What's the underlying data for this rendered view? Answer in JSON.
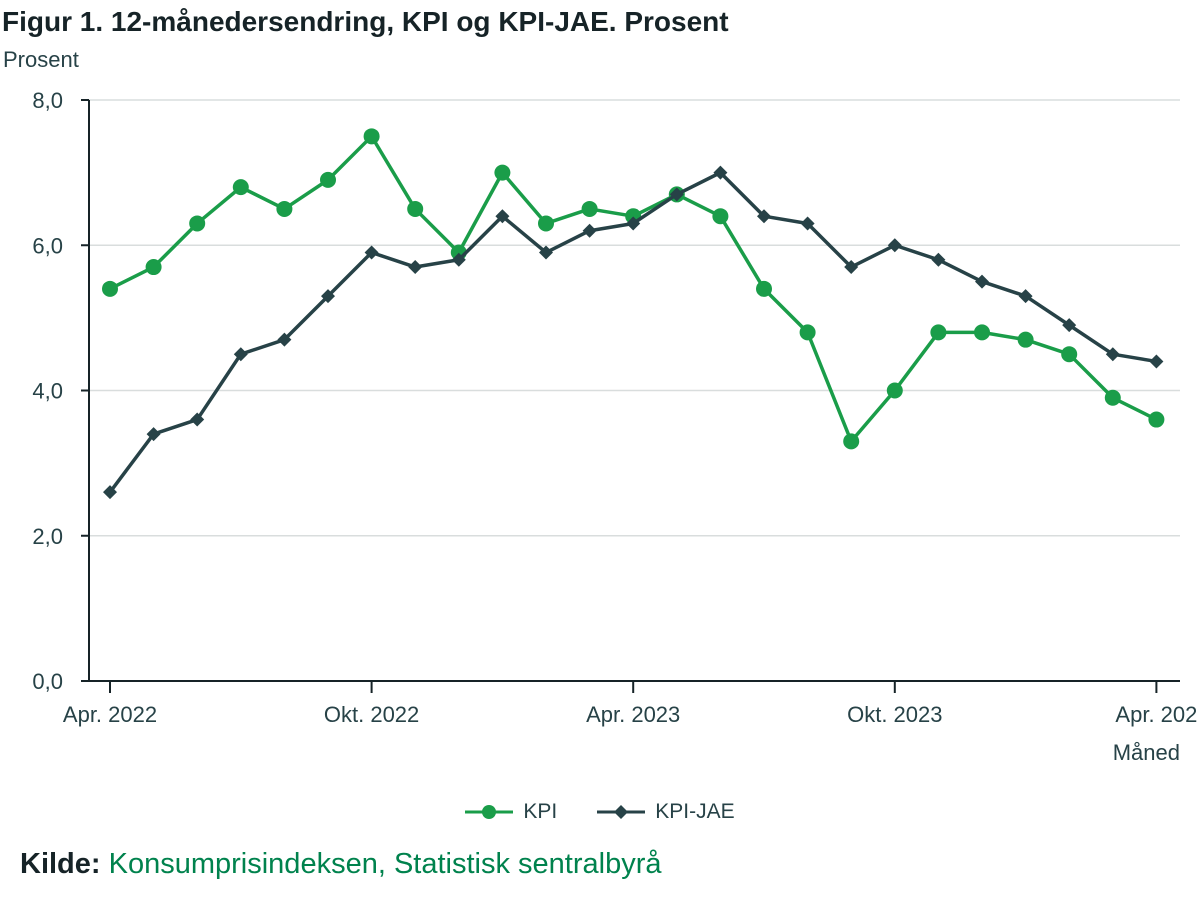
{
  "chart_data": {
    "type": "line",
    "title": "Figur 1. 12-månedersendring, KPI og KPI-JAE. Prosent",
    "ylabel": "Prosent",
    "xlabel": "Måned",
    "ylim": [
      0,
      8
    ],
    "yticks": [
      "0,0",
      "2,0",
      "4,0",
      "6,0",
      "8,0"
    ],
    "ytick_values": [
      0,
      2,
      4,
      6,
      8
    ],
    "x": [
      "2022-04",
      "2022-05",
      "2022-06",
      "2022-07",
      "2022-08",
      "2022-09",
      "2022-10",
      "2022-11",
      "2022-12",
      "2023-01",
      "2023-02",
      "2023-03",
      "2023-04",
      "2023-05",
      "2023-06",
      "2023-07",
      "2023-08",
      "2023-09",
      "2023-10",
      "2023-11",
      "2023-12",
      "2024-01",
      "2024-02",
      "2024-03",
      "2024-04"
    ],
    "xticks": [
      {
        "x": "2022-04",
        "label": "Apr. 2022"
      },
      {
        "x": "2022-10",
        "label": "Okt. 2022"
      },
      {
        "x": "2023-04",
        "label": "Apr. 2023"
      },
      {
        "x": "2023-10",
        "label": "Okt. 2023"
      },
      {
        "x": "2024-04",
        "label": "Apr. 202"
      }
    ],
    "grid": true,
    "legend_position": "bottom-center",
    "series": [
      {
        "name": "KPI",
        "color": "#1a9d49",
        "marker": "circle",
        "values": [
          5.4,
          5.7,
          6.3,
          6.8,
          6.5,
          6.9,
          7.5,
          6.5,
          5.9,
          7.0,
          6.3,
          6.5,
          6.4,
          6.7,
          6.4,
          5.4,
          4.8,
          3.3,
          4.0,
          4.8,
          4.8,
          4.7,
          4.5,
          3.9,
          3.6
        ]
      },
      {
        "name": "KPI-JAE",
        "color": "#274247",
        "marker": "diamond",
        "values": [
          2.6,
          3.4,
          3.6,
          4.5,
          4.7,
          5.3,
          5.9,
          5.7,
          5.8,
          6.4,
          5.9,
          6.2,
          6.3,
          6.7,
          7.0,
          6.4,
          6.3,
          5.7,
          6.0,
          5.8,
          5.5,
          5.3,
          4.9,
          4.5,
          4.4
        ]
      }
    ]
  },
  "source": {
    "label": "Kilde:",
    "text": "Konsumprisindeksen, Statistisk sentralbyrå"
  }
}
